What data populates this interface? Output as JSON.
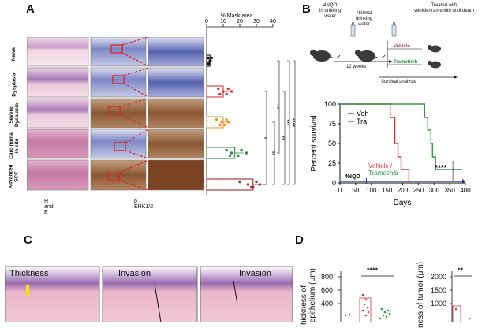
{
  "panels": {
    "a": "A",
    "b": "B",
    "c": "C",
    "d": "D"
  },
  "panel_a": {
    "row_labels": [
      "Naive",
      "Dysplasia",
      "Severe\nDysplasia",
      "Carcinoma\nin situ",
      "Advanced\nSCC"
    ],
    "col_label_he": "H and E",
    "col_label_perk": "p ERK1/2",
    "mask_chart_colors": [
      "#111111",
      "#d23a3a",
      "#e8952a",
      "#2e8b3e",
      "#9c2a2a"
    ],
    "significance": [
      "*",
      "**",
      "**",
      "**",
      "***",
      "****"
    ]
  },
  "panel_b": {
    "step1": "4NQO\nin drinking\nwater",
    "step2": "Normal\ndrinking\nwater",
    "step3": "Treated with\nvehicle/trametinib until death",
    "weeks": "12 weeks",
    "vehicle": "Vehicle",
    "trametinib": "Trametinib",
    "survival_analysis": "Survival analysis",
    "annot_vehicle": "Vehicle /",
    "annot_trametinib": "Trametinib",
    "annot_4nqo": "4NQO",
    "annot_sig": "****"
  },
  "panel_c": {
    "img1": "Thickness",
    "img2": "Invasion",
    "img3": "Invasion"
  },
  "panel_d": {
    "ylabel1": "hickness of\n epithelium (μm)",
    "ylabel2": "ness of tumor (μm)",
    "ticks1": [
      "800",
      "600",
      "400"
    ],
    "ticks2": [
      "2000",
      "1500",
      "1000"
    ],
    "sig1": "****",
    "sig2": "**"
  },
  "chart_data": [
    {
      "type": "scatter",
      "title": "% Mask area",
      "xlabel": "% Mask area",
      "xlim": [
        0,
        40
      ],
      "xticks": [
        0,
        10,
        20,
        30,
        40
      ],
      "categories": [
        "Naive",
        "Dysplasia",
        "Severe Dysplasia",
        "Carcinoma in situ",
        "Advanced SCC"
      ],
      "bar_values": [
        2,
        10,
        10,
        17,
        28
      ],
      "points": [
        [
          1,
          2,
          1,
          3,
          2,
          1
        ],
        [
          7,
          10,
          12,
          13,
          15,
          8
        ],
        [
          6,
          9,
          11,
          12,
          13,
          8
        ],
        [
          12,
          15,
          19,
          21,
          24,
          14
        ],
        [
          20,
          25,
          27,
          30,
          32,
          28
        ]
      ],
      "comparisons": [
        {
          "from": "Dysplasia",
          "to": "Advanced SCC",
          "sig": "*"
        },
        {
          "from": "Severe Dysplasia",
          "to": "Advanced SCC",
          "sig": "**"
        },
        {
          "from": "Naive",
          "to": "Carcinoma in situ",
          "sig": "**"
        },
        {
          "from": "Dysplasia",
          "to": "Advanced SCC",
          "sig": "**"
        },
        {
          "from": "Naive",
          "to": "Advanced SCC",
          "sig": "***"
        },
        {
          "from": "Naive",
          "to": "Advanced SCC",
          "sig": "****"
        }
      ]
    },
    {
      "type": "line",
      "xlabel": "Days",
      "ylabel": "Percent survival",
      "xlim": [
        0,
        400
      ],
      "ylim": [
        0,
        100
      ],
      "xticks": [
        0,
        50,
        100,
        150,
        200,
        250,
        300,
        350,
        400
      ],
      "yticks": [
        0,
        25,
        50,
        75,
        100
      ],
      "legend": "top-left",
      "series": [
        {
          "name": "Veh",
          "color": "#d23a3a",
          "x": [
            0,
            160,
            160,
            175,
            175,
            185,
            185,
            195,
            195,
            220,
            220
          ],
          "y": [
            100,
            100,
            83,
            83,
            50,
            50,
            33,
            33,
            17,
            17,
            0
          ]
        },
        {
          "name": "Tra",
          "color": "#2e9b3e",
          "x": [
            0,
            270,
            270,
            280,
            280,
            290,
            290,
            295,
            295,
            305,
            305,
            390
          ],
          "y": [
            100,
            100,
            83,
            83,
            67,
            67,
            50,
            50,
            33,
            33,
            17,
            17
          ]
        }
      ]
    }
  ]
}
